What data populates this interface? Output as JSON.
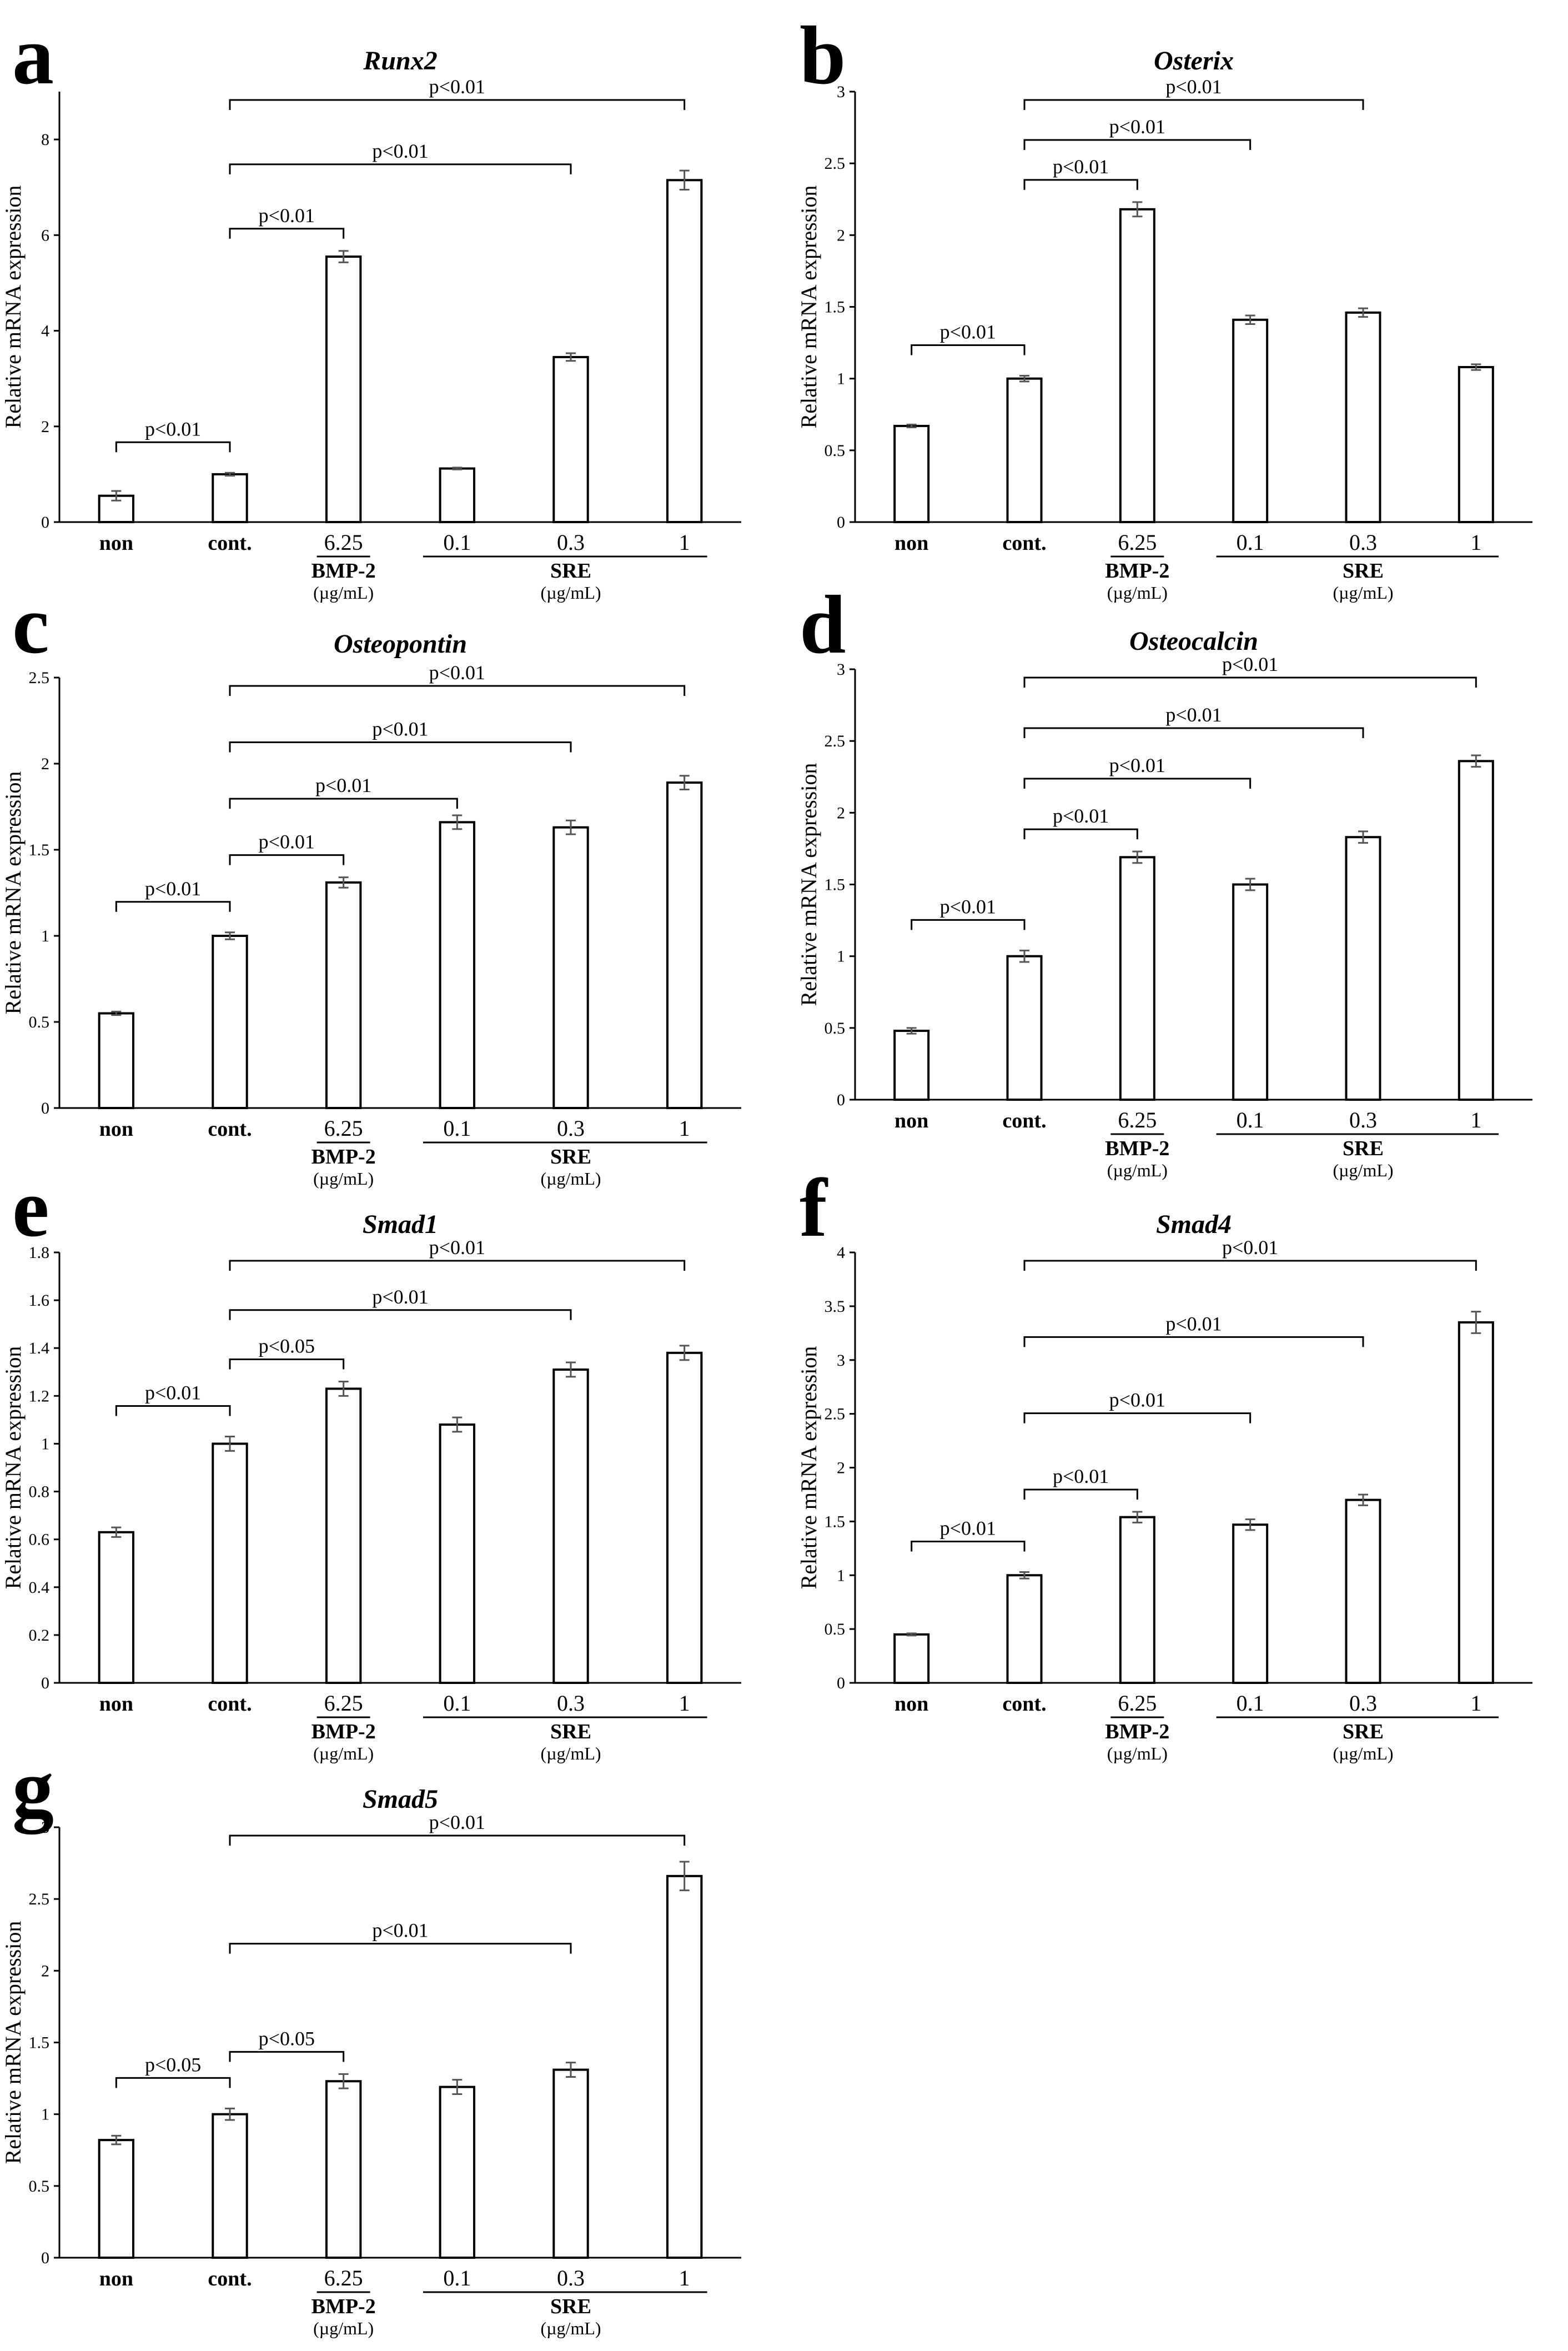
{
  "chart_data": [
    {
      "panel": "a",
      "type": "bar",
      "title": "Runx2",
      "ylabel": "Relative mRNA expression",
      "xlabel": "",
      "categories": [
        "non",
        "cont.",
        "6.25",
        "0.1",
        "0.3",
        "1"
      ],
      "values": [
        0.55,
        1.0,
        5.55,
        1.12,
        3.45,
        7.15
      ],
      "errors": [
        0.1,
        0.03,
        0.12,
        0.02,
        0.08,
        0.2
      ],
      "ylim": [
        0,
        9
      ],
      "yticks": [
        "0",
        "2",
        "4",
        "6",
        "8"
      ],
      "groups": [
        {
          "label": "BMP-2",
          "unit": "(µg/mL)"
        },
        {
          "label": "SRE",
          "unit": "(µg/mL)"
        }
      ],
      "significance": [
        {
          "from": "non",
          "to": "cont.",
          "label": "p<0.01"
        },
        {
          "from": "cont.",
          "to": "6.25",
          "label": "p<0.01"
        },
        {
          "from": "cont.",
          "to": "0.3",
          "label": "p<0.01"
        },
        {
          "from": "cont.",
          "to": "1",
          "label": "p<0.01"
        }
      ]
    },
    {
      "panel": "b",
      "type": "bar",
      "title": "Osterix",
      "ylabel": "Relative mRNA expression",
      "xlabel": "",
      "categories": [
        "non",
        "cont.",
        "6.25",
        "0.1",
        "0.3",
        "1"
      ],
      "values": [
        0.67,
        1.0,
        2.18,
        1.41,
        1.46,
        1.08
      ],
      "errors": [
        0.01,
        0.02,
        0.05,
        0.03,
        0.03,
        0.02
      ],
      "ylim": [
        0,
        3
      ],
      "yticks": [
        "0",
        "0.5",
        "1",
        "1.5",
        "2",
        "2.5",
        "3"
      ],
      "groups": [
        {
          "label": "BMP-2",
          "unit": "(µg/mL)"
        },
        {
          "label": "SRE",
          "unit": "(µg/mL)"
        }
      ],
      "significance": [
        {
          "from": "non",
          "to": "cont.",
          "label": "p<0.01"
        },
        {
          "from": "cont.",
          "to": "6.25",
          "label": "p<0.01"
        },
        {
          "from": "cont.",
          "to": "0.1",
          "label": "p<0.01"
        },
        {
          "from": "cont.",
          "to": "0.3",
          "label": "p<0.01"
        }
      ]
    },
    {
      "panel": "c",
      "type": "bar",
      "title": "Osteopontin",
      "ylabel": "Relative mRNA expression",
      "xlabel": "",
      "categories": [
        "non",
        "cont.",
        "6.25",
        "0.1",
        "0.3",
        "1"
      ],
      "values": [
        0.55,
        1.0,
        1.31,
        1.66,
        1.63,
        1.89
      ],
      "errors": [
        0.01,
        0.02,
        0.03,
        0.04,
        0.04,
        0.04
      ],
      "ylim": [
        0,
        2.5
      ],
      "yticks": [
        "0",
        "0.5",
        "1",
        "1.5",
        "2",
        "2.5"
      ],
      "groups": [
        {
          "label": "BMP-2",
          "unit": "(µg/mL)"
        },
        {
          "label": "SRE",
          "unit": "(µg/mL)"
        }
      ],
      "significance": [
        {
          "from": "non",
          "to": "cont.",
          "label": "p<0.01"
        },
        {
          "from": "cont.",
          "to": "6.25",
          "label": "p<0.01"
        },
        {
          "from": "cont.",
          "to": "0.1",
          "label": "p<0.01"
        },
        {
          "from": "cont.",
          "to": "0.3",
          "label": "p<0.01"
        },
        {
          "from": "cont.",
          "to": "1",
          "label": "p<0.01"
        }
      ]
    },
    {
      "panel": "d",
      "type": "bar",
      "title": "Osteocalcin",
      "ylabel": "Relative mRNA expression",
      "xlabel": "",
      "categories": [
        "non",
        "cont.",
        "6.25",
        "0.1",
        "0.3",
        "1"
      ],
      "values": [
        0.48,
        1.0,
        1.69,
        1.5,
        1.83,
        2.36
      ],
      "errors": [
        0.02,
        0.04,
        0.04,
        0.04,
        0.04,
        0.04
      ],
      "ylim": [
        0,
        3
      ],
      "yticks": [
        "0",
        "0.5",
        "1",
        "1.5",
        "2",
        "2.5",
        "3"
      ],
      "groups": [
        {
          "label": "BMP-2",
          "unit": "(µg/mL)"
        },
        {
          "label": "SRE",
          "unit": "(µg/mL)"
        }
      ],
      "significance": [
        {
          "from": "non",
          "to": "cont.",
          "label": "p<0.01"
        },
        {
          "from": "cont.",
          "to": "6.25",
          "label": "p<0.01"
        },
        {
          "from": "cont.",
          "to": "0.1",
          "label": "p<0.01"
        },
        {
          "from": "cont.",
          "to": "0.3",
          "label": "p<0.01"
        },
        {
          "from": "cont.",
          "to": "1",
          "label": "p<0.01"
        }
      ]
    },
    {
      "panel": "e",
      "type": "bar",
      "title": "Smad1",
      "ylabel": "Relative mRNA expression",
      "xlabel": "",
      "categories": [
        "non",
        "cont.",
        "6.25",
        "0.1",
        "0.3",
        "1"
      ],
      "values": [
        0.63,
        1.0,
        1.23,
        1.08,
        1.31,
        1.38
      ],
      "errors": [
        0.02,
        0.03,
        0.03,
        0.03,
        0.03,
        0.03
      ],
      "ylim": [
        0,
        1.8
      ],
      "yticks": [
        "0",
        "0.2",
        "0.4",
        "0.6",
        "0.8",
        "1",
        "1.2",
        "1.4",
        "1.6",
        "1.8"
      ],
      "groups": [
        {
          "label": "BMP-2",
          "unit": "(µg/mL)"
        },
        {
          "label": "SRE",
          "unit": "(µg/mL)"
        }
      ],
      "significance": [
        {
          "from": "non",
          "to": "cont.",
          "label": "p<0.01"
        },
        {
          "from": "cont.",
          "to": "6.25",
          "label": "p<0.05"
        },
        {
          "from": "cont.",
          "to": "0.3",
          "label": "p<0.01"
        },
        {
          "from": "cont.",
          "to": "1",
          "label": "p<0.01"
        }
      ]
    },
    {
      "panel": "f",
      "type": "bar",
      "title": "Smad4",
      "ylabel": "Relative mRNA expression",
      "xlabel": "",
      "categories": [
        "non",
        "cont.",
        "6.25",
        "0.1",
        "0.3",
        "1"
      ],
      "values": [
        0.45,
        1.0,
        1.54,
        1.47,
        1.7,
        3.35
      ],
      "errors": [
        0.01,
        0.03,
        0.05,
        0.05,
        0.05,
        0.1
      ],
      "ylim": [
        0,
        4
      ],
      "yticks": [
        "0",
        "0.5",
        "1",
        "1.5",
        "2",
        "2.5",
        "3",
        "3.5",
        "4"
      ],
      "groups": [
        {
          "label": "BMP-2",
          "unit": "(µg/mL)"
        },
        {
          "label": "SRE",
          "unit": "(µg/mL)"
        }
      ],
      "significance": [
        {
          "from": "non",
          "to": "cont.",
          "label": "p<0.01"
        },
        {
          "from": "cont.",
          "to": "6.25",
          "label": "p<0.01"
        },
        {
          "from": "cont.",
          "to": "0.1",
          "label": "p<0.01"
        },
        {
          "from": "cont.",
          "to": "0.3",
          "label": "p<0.01"
        },
        {
          "from": "cont.",
          "to": "1",
          "label": "p<0.01"
        }
      ]
    },
    {
      "panel": "g",
      "type": "bar",
      "title": "Smad5",
      "ylabel": "Relative mRNA expression",
      "xlabel": "",
      "categories": [
        "non",
        "cont.",
        "6.25",
        "0.1",
        "0.3",
        "1"
      ],
      "values": [
        0.82,
        1.0,
        1.23,
        1.19,
        1.31,
        2.66
      ],
      "errors": [
        0.03,
        0.04,
        0.05,
        0.05,
        0.05,
        0.1
      ],
      "ylim": [
        0,
        3
      ],
      "yticks": [
        "0",
        "0.5",
        "1",
        "1.5",
        "2",
        "2.5",
        "3"
      ],
      "groups": [
        {
          "label": "BMP-2",
          "unit": "(µg/mL)"
        },
        {
          "label": "SRE",
          "unit": "(µg/mL)"
        }
      ],
      "significance": [
        {
          "from": "non",
          "to": "cont.",
          "label": "p<0.05"
        },
        {
          "from": "cont.",
          "to": "6.25",
          "label": "p<0.05"
        },
        {
          "from": "cont.",
          "to": "0.3",
          "label": "p<0.01"
        },
        {
          "from": "cont.",
          "to": "1",
          "label": "p<0.01"
        }
      ]
    }
  ]
}
